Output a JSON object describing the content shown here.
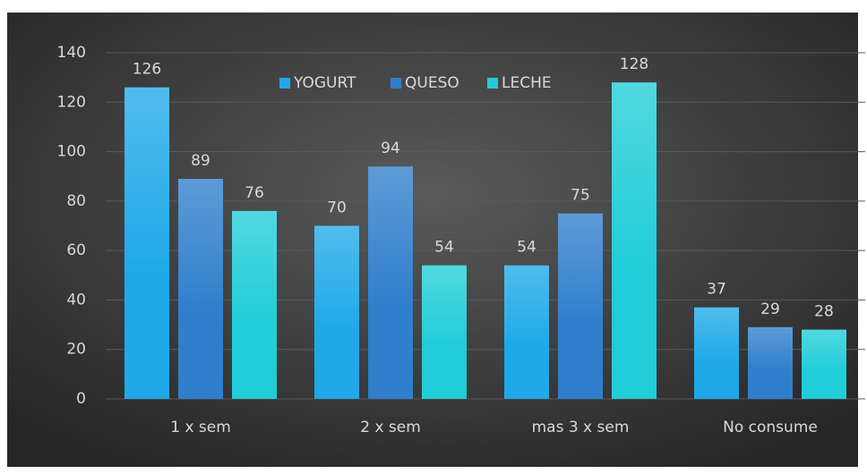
{
  "chart_data": {
    "type": "bar",
    "categories": [
      "1 x sem",
      "2 x sem",
      "mas 3 x sem",
      "No consume"
    ],
    "series": [
      {
        "name": "YOGURT",
        "color": "#1fa9e8",
        "values": [
          126,
          70,
          54,
          37
        ]
      },
      {
        "name": "QUESO",
        "color": "#2f7fcc",
        "values": [
          89,
          94,
          75,
          29
        ]
      },
      {
        "name": "LECHE",
        "color": "#20cdd8",
        "values": [
          76,
          54,
          128,
          28
        ]
      }
    ],
    "ylim": [
      0,
      140
    ],
    "yticks": [
      0,
      20,
      40,
      60,
      80,
      100,
      120,
      140
    ],
    "grid": true,
    "legend": "top"
  }
}
